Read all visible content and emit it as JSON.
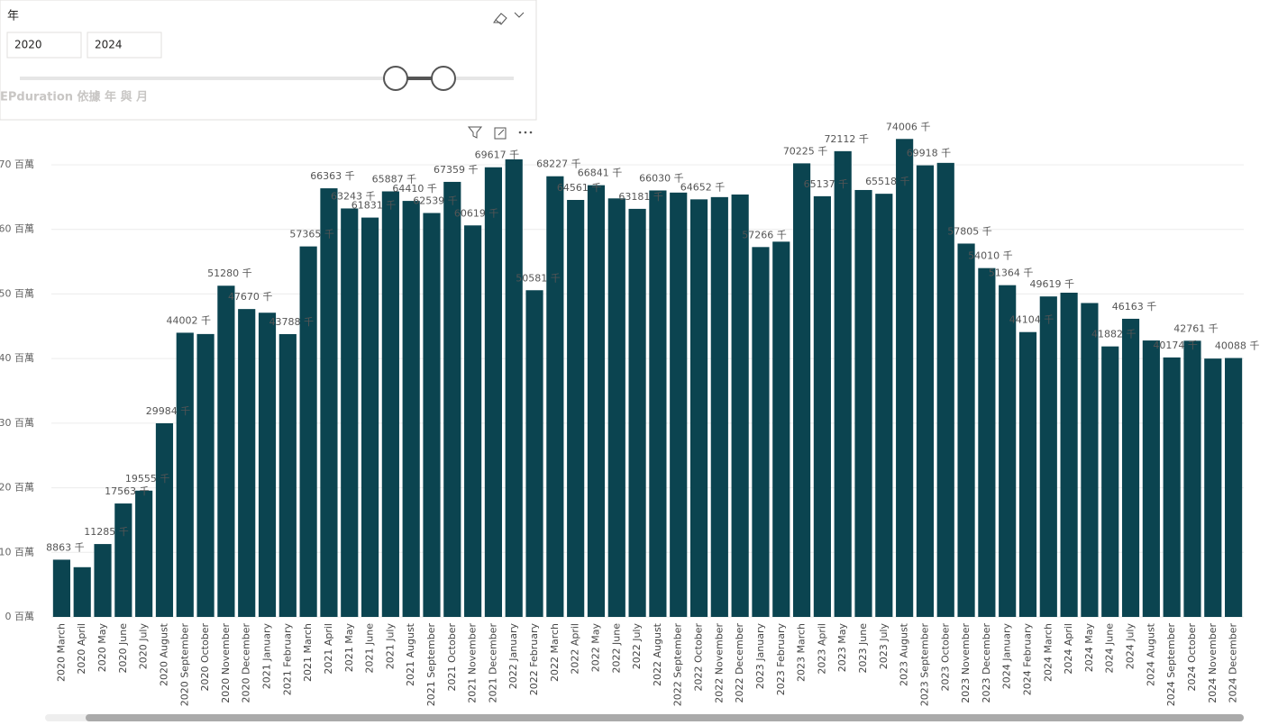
{
  "slicer": {
    "title": "年",
    "start": "2020",
    "end": "2024"
  },
  "chart_data": {
    "type": "bar",
    "title": "EPduration 依據 年 與 月",
    "categories": [
      "2020 March",
      "2020 April",
      "2020 May",
      "2020 June",
      "2020 July",
      "2020 August",
      "2020 September",
      "2020 October",
      "2020 November",
      "2020 December",
      "2021 January",
      "2021 February",
      "2021 March",
      "2021 April",
      "2021 May",
      "2021 June",
      "2021 July",
      "2021 August",
      "2021 September",
      "2021 October",
      "2021 November",
      "2021 December",
      "2022 January",
      "2022 February",
      "2022 March",
      "2022 April",
      "2022 May",
      "2022 June",
      "2022 July",
      "2022 August",
      "2022 September",
      "2022 October",
      "2022 November",
      "2022 December",
      "2023 January",
      "2023 February",
      "2023 March",
      "2023 April",
      "2023 May",
      "2023 June",
      "2023 July",
      "2023 August",
      "2023 September",
      "2023 October",
      "2023 November",
      "2023 December",
      "2024 January",
      "2024 February",
      "2024 March",
      "2024 April",
      "2024 May",
      "2024 June",
      "2024 July",
      "2024 August",
      "2024 September",
      "2024 October",
      "2024 November",
      "2024 December"
    ],
    "values": [
      8.863,
      7.7,
      11.285,
      17.563,
      19.555,
      29.984,
      44.002,
      43.8,
      51.28,
      47.67,
      47.1,
      43.788,
      57.365,
      66.363,
      63.243,
      61.831,
      65.887,
      64.41,
      62.539,
      67.359,
      60.619,
      69.617,
      70.85,
      50.581,
      68.227,
      64.561,
      66.841,
      64.8,
      63.181,
      66.03,
      65.7,
      64.652,
      65.0,
      65.4,
      57.266,
      58.1,
      70.225,
      65.137,
      72.112,
      66.1,
      65.518,
      74.006,
      69.918,
      70.3,
      57.805,
      54.01,
      51.364,
      44.104,
      49.619,
      50.2,
      48.6,
      41.882,
      46.163,
      42.8,
      40.174,
      42.761,
      40.0,
      40.088
    ],
    "value_labels": [
      "8863 千",
      null,
      "11285 千",
      "17563 千",
      "19555 千",
      "29984 千",
      "44002 千",
      null,
      "51280 千",
      "47670 千",
      null,
      "43788 千",
      "57365 千",
      "66363 千",
      "63243 千",
      "61831 千",
      "65887 千",
      "64410 千",
      "62539 千",
      "67359 千",
      "60619 千",
      "69617 千",
      null,
      "50581 千",
      "68227 千",
      "64561 千",
      "66841 千",
      null,
      "63181 千",
      "66030 千",
      null,
      "64652 千",
      null,
      null,
      "57266 千",
      null,
      "70225 千",
      "65137 千",
      "72112 千",
      null,
      "65518 千",
      "74006 千",
      "69918 千",
      null,
      "57805 千",
      "54010 千",
      "51364 千",
      "44104 千",
      "49619 千",
      null,
      null,
      "41882 千",
      "46163 千",
      null,
      "40174 千",
      "42761 千",
      null,
      "40088 千"
    ],
    "color": "#0b4450",
    "ylim": [
      0,
      70
    ],
    "yticks": [
      {
        "value": 0,
        "label": "0 百萬"
      },
      {
        "value": 10,
        "label": "10 百萬"
      },
      {
        "value": 20,
        "label": "20 百萬"
      },
      {
        "value": 30,
        "label": "30 百萬"
      },
      {
        "value": 40,
        "label": "40 百萬"
      },
      {
        "value": 50,
        "label": "50 百萬"
      },
      {
        "value": 60,
        "label": "60 百萬"
      },
      {
        "value": 70,
        "label": "70 百萬"
      }
    ],
    "grid": true
  }
}
